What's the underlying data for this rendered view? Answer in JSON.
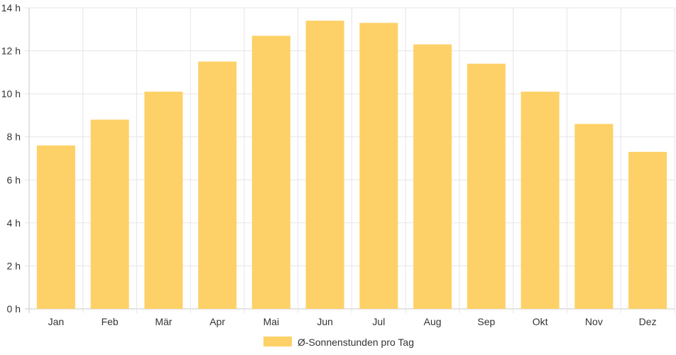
{
  "chart_data": {
    "type": "bar",
    "categories": [
      "Jan",
      "Feb",
      "Mär",
      "Apr",
      "Mai",
      "Jun",
      "Jul",
      "Aug",
      "Sep",
      "Okt",
      "Nov",
      "Dez"
    ],
    "series": [
      {
        "name": "Ø-Sonnenstunden pro Tag",
        "values": [
          7.6,
          8.8,
          10.1,
          11.5,
          12.7,
          13.4,
          13.3,
          12.3,
          11.4,
          10.1,
          8.6,
          7.3
        ]
      }
    ],
    "ylim": [
      0,
      14
    ],
    "y_ticks": [
      "0 h",
      "2 h",
      "4 h",
      "6 h",
      "8 h",
      "10 h",
      "12 h",
      "14 h"
    ],
    "grid": true,
    "legend_position": "bottom",
    "colors": {
      "bar": "#fdd167",
      "grid": "#e5e5e5",
      "axis": "#c8c8c8"
    }
  }
}
